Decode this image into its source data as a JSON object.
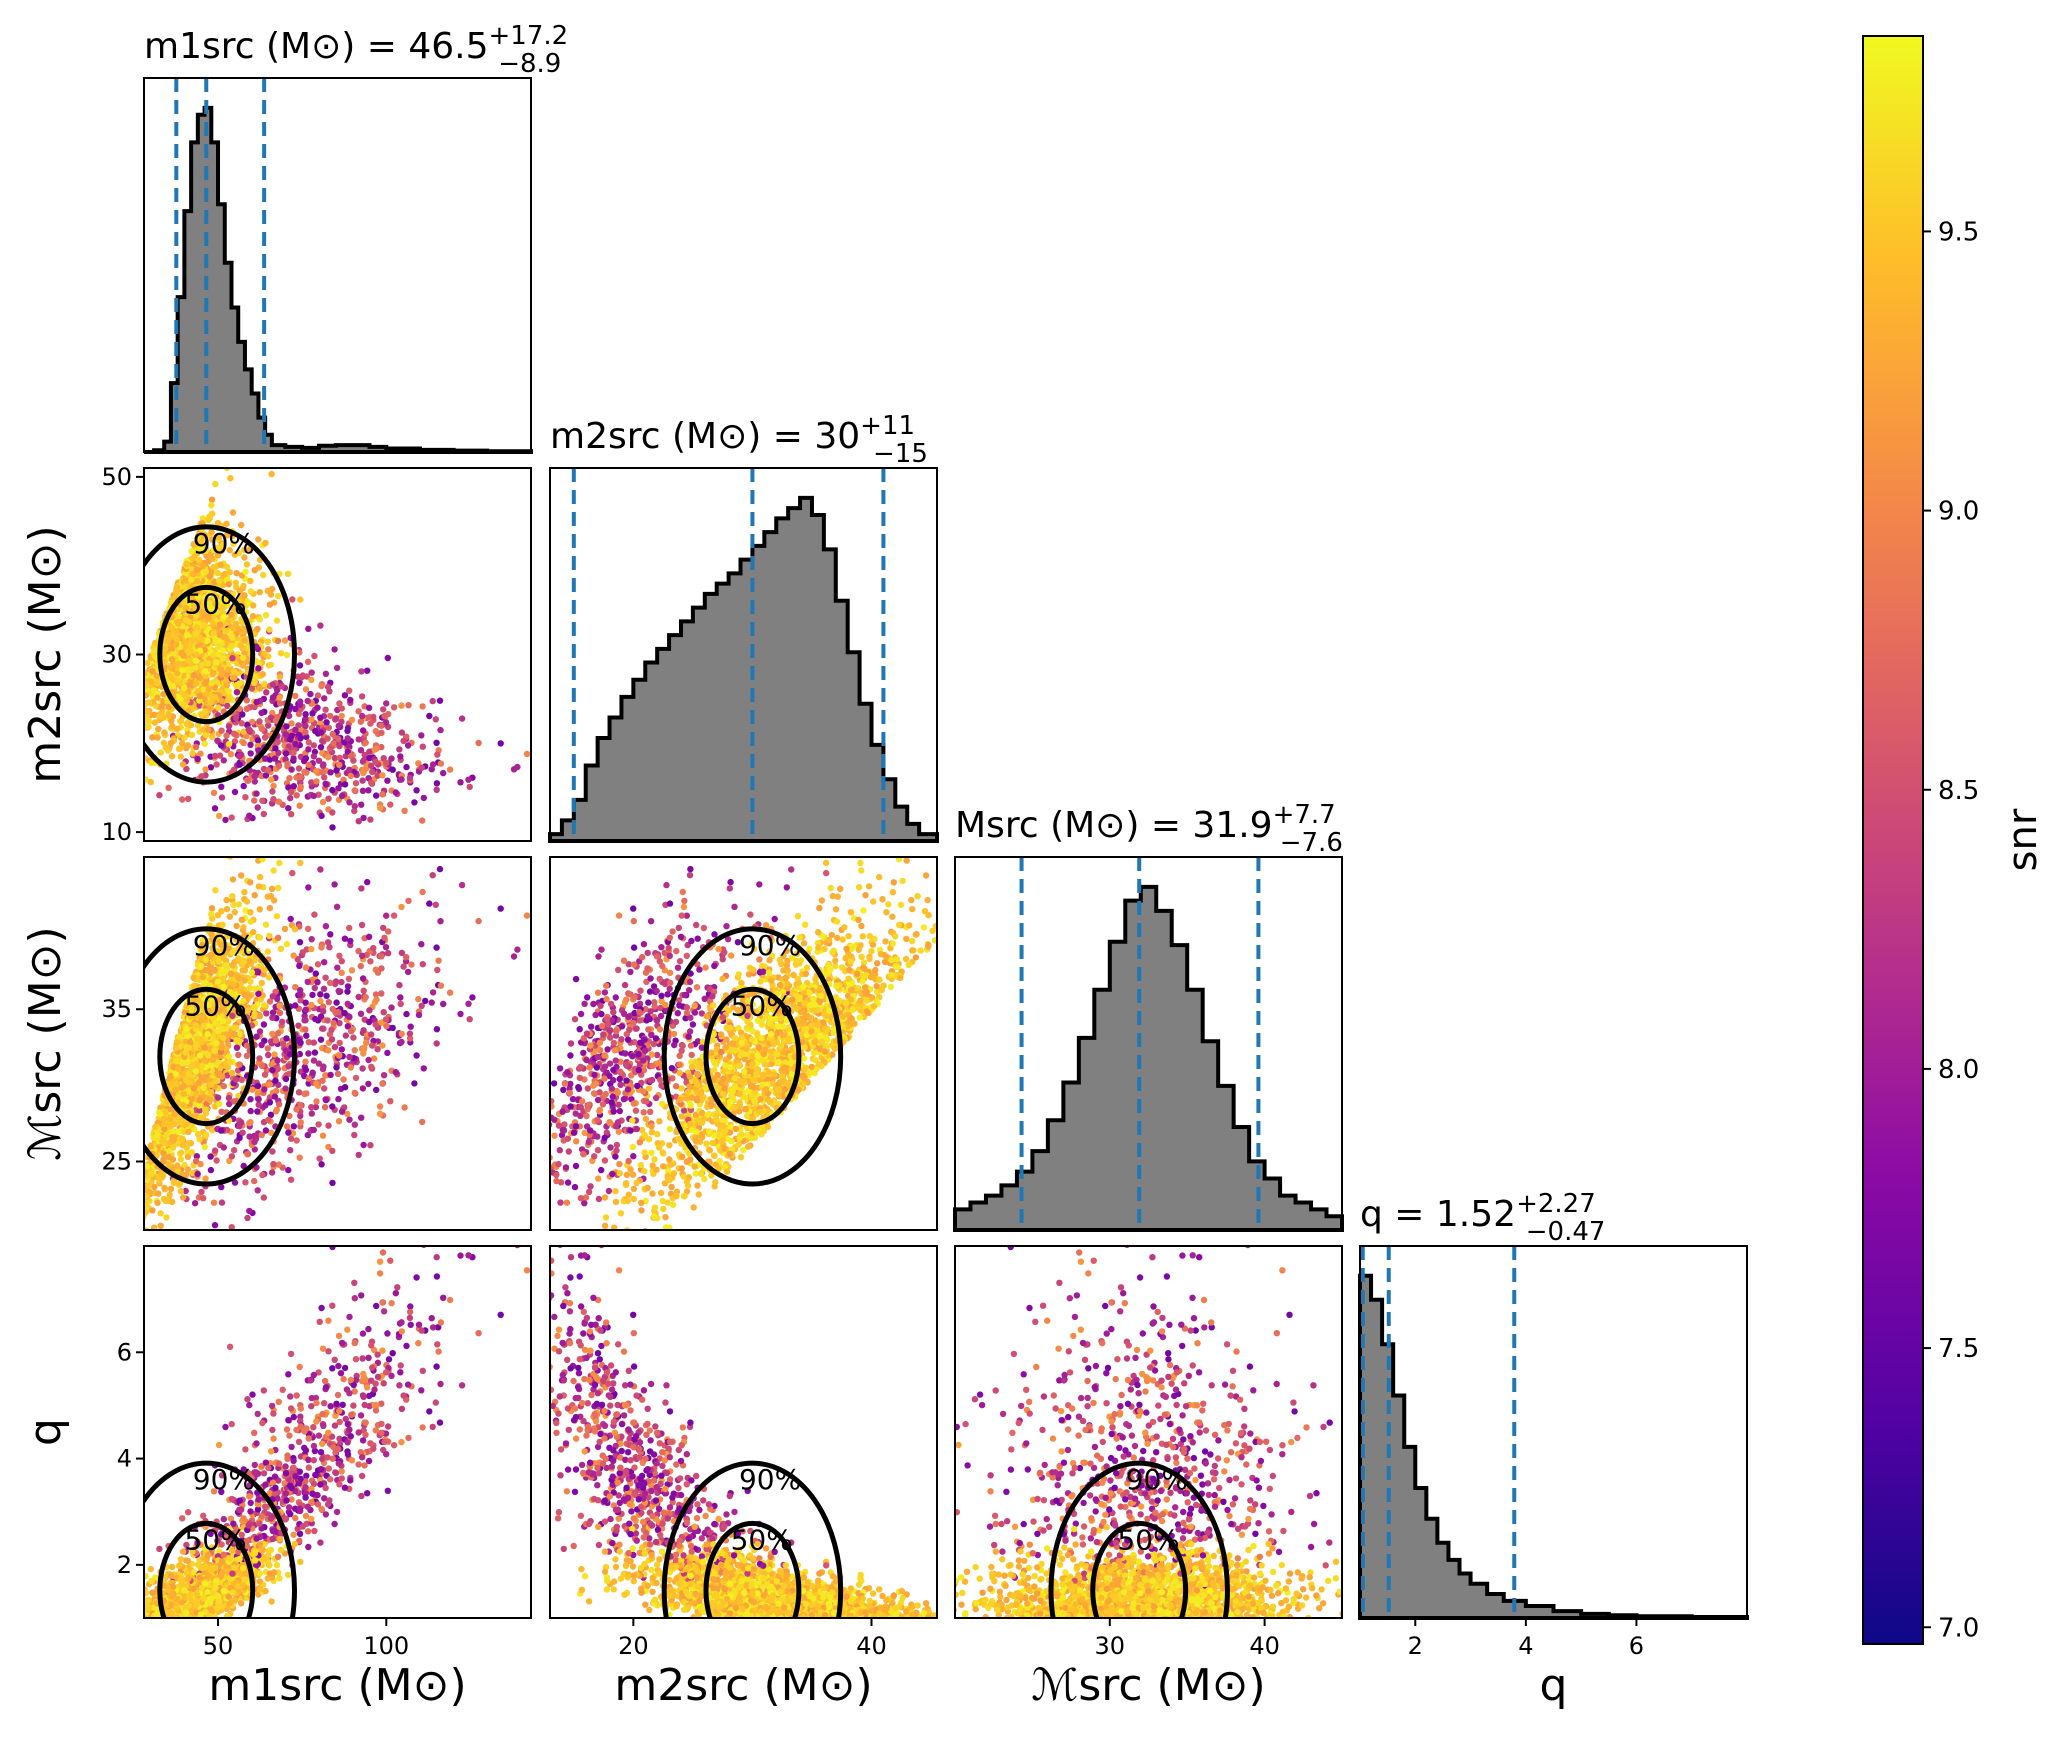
{
  "chart_data": {
    "type": "scatter",
    "subtype": "corner plot (marginal histograms + 2D scatter with credible-region contours)",
    "parameters": [
      {
        "key": "m1",
        "axis_label": "m_1^src (M_⊙)",
        "ticks": [
          50,
          100
        ],
        "range": [
          28,
          143
        ],
        "summary": {
          "median": 46.5,
          "plus": 17.2,
          "minus": 8.9
        },
        "title_label": "m_1^src (M_⊙) = 46.5^{+17.2}_{−8.9}",
        "title_plain": "m1src (M⊙) = 46.5 +17.2 −8.9"
      },
      {
        "key": "m2",
        "axis_label": "m_2^src (M_⊙)",
        "ticks": [
          20,
          40
        ],
        "range": [
          13,
          45.5
        ],
        "y_ticks": [
          10,
          30,
          50
        ],
        "y_range": [
          9,
          51
        ],
        "summary": {
          "median": 30,
          "plus": 11,
          "minus": 15
        },
        "title_label": "m_2^src (M_⊙) = 30^{+11}_{−15}",
        "title_plain": "m2src (M⊙) = 30 +11 −15"
      },
      {
        "key": "mc",
        "axis_label": "ℳ^src (M_⊙)",
        "ticks": [
          30,
          40
        ],
        "range": [
          20,
          45
        ],
        "y_ticks": [
          25,
          35
        ],
        "y_range": [
          20.5,
          45
        ],
        "summary": {
          "median": 31.9,
          "plus": 7.7,
          "minus": 7.6
        },
        "title_label": "ℳ^src (M_⊙) = 31.9^{+7.7}_{−7.6}",
        "title_plain": "Msrc (M⊙) = 31.9 +7.7 −7.6"
      },
      {
        "key": "q",
        "axis_label": "q",
        "ticks": [
          2,
          4,
          6
        ],
        "range": [
          1,
          8
        ],
        "y_ticks": [
          2,
          4,
          6
        ],
        "y_range": [
          1,
          8
        ],
        "summary": {
          "median": 1.52,
          "plus": 2.27,
          "minus": 0.47
        },
        "title_label": "q = 1.52^{+2.27}_{−0.47}",
        "title_plain": "q = 1.52 +2.27 −0.47"
      }
    ],
    "histograms": {
      "m1": {
        "quantiles": [
          37.6,
          46.5,
          63.7
        ],
        "x": [
          28,
          31,
          34,
          36,
          38,
          40,
          42,
          44,
          46,
          48,
          50,
          52,
          54,
          56,
          58,
          60,
          62,
          64,
          66,
          70,
          75,
          80,
          85,
          90,
          95,
          100,
          110,
          120,
          130,
          143
        ],
        "y": [
          0,
          0.005,
          0.03,
          0.2,
          0.45,
          0.7,
          0.9,
          0.98,
          1.0,
          0.9,
          0.72,
          0.55,
          0.42,
          0.32,
          0.24,
          0.17,
          0.1,
          0.05,
          0.02,
          0.015,
          0.012,
          0.018,
          0.02,
          0.02,
          0.015,
          0.01,
          0.006,
          0.004,
          0.002,
          0.001
        ]
      },
      "m2": {
        "quantiles": [
          15,
          30,
          41
        ],
        "x": [
          13,
          14,
          15,
          16,
          17,
          18,
          19,
          20,
          21,
          22,
          23,
          24,
          25,
          26,
          27,
          28,
          29,
          30,
          31,
          32,
          33,
          34,
          35,
          36,
          37,
          38,
          39,
          40,
          41,
          42,
          43,
          44,
          45.5
        ],
        "y": [
          0.02,
          0.06,
          0.12,
          0.22,
          0.3,
          0.36,
          0.42,
          0.47,
          0.52,
          0.56,
          0.6,
          0.64,
          0.68,
          0.72,
          0.75,
          0.78,
          0.82,
          0.86,
          0.9,
          0.94,
          0.97,
          1.0,
          0.95,
          0.85,
          0.7,
          0.55,
          0.4,
          0.28,
          0.18,
          0.1,
          0.05,
          0.02,
          0.01
        ]
      },
      "mc": {
        "quantiles": [
          24.3,
          31.9,
          39.6
        ],
        "x": [
          20,
          21,
          22,
          23,
          24,
          25,
          26,
          27,
          28,
          29,
          30,
          31,
          32,
          33,
          34,
          35,
          36,
          37,
          38,
          39,
          40,
          41,
          42,
          43,
          44,
          45
        ],
        "y": [
          0.06,
          0.08,
          0.1,
          0.13,
          0.17,
          0.23,
          0.32,
          0.43,
          0.56,
          0.7,
          0.84,
          0.96,
          1.0,
          0.93,
          0.83,
          0.7,
          0.55,
          0.42,
          0.3,
          0.2,
          0.15,
          0.1,
          0.08,
          0.06,
          0.04,
          0.03
        ]
      },
      "q": {
        "quantiles": [
          1.05,
          1.52,
          3.79
        ],
        "x": [
          1,
          1.2,
          1.4,
          1.6,
          1.8,
          2,
          2.2,
          2.4,
          2.6,
          2.8,
          3,
          3.3,
          3.6,
          4,
          4.5,
          5,
          5.5,
          6,
          7,
          8
        ],
        "y": [
          1.0,
          0.93,
          0.8,
          0.65,
          0.5,
          0.38,
          0.29,
          0.22,
          0.17,
          0.13,
          0.1,
          0.07,
          0.05,
          0.035,
          0.02,
          0.012,
          0.008,
          0.005,
          0.003,
          0.002
        ]
      }
    },
    "contours": {
      "levels": [
        "50%",
        "90%"
      ],
      "color": "#000000"
    },
    "quantile_line_color": "#1f77b4",
    "histogram_fill": "#808080",
    "colorbar": {
      "label": "snr",
      "colormap": "plasma",
      "range": [
        6.97,
        9.85
      ],
      "ticks": [
        "7.0",
        "7.5",
        "8.0",
        "8.5",
        "9.0",
        "9.5"
      ]
    }
  },
  "colors": {
    "plasma_stops": [
      "#0d0887",
      "#5302a3",
      "#8b0aa5",
      "#b83289",
      "#db5c68",
      "#f48849",
      "#febd2a",
      "#f0f921"
    ]
  }
}
